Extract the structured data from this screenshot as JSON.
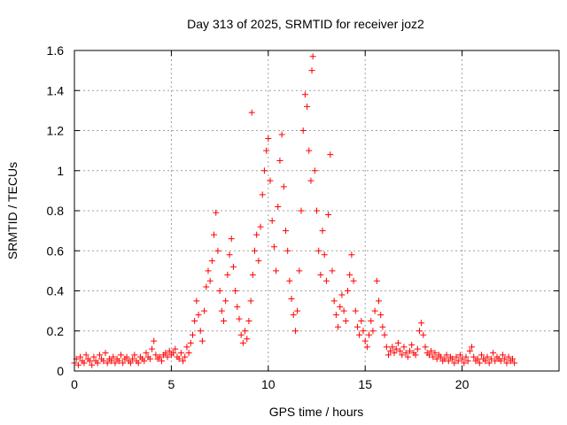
{
  "chart_data": {
    "type": "scatter",
    "title": "Day 313 of 2025, SRMTID for receiver joz2",
    "xlabel": "GPS time / hours",
    "ylabel": "SRMTID / TECUs",
    "xlim": [
      0,
      25
    ],
    "ylim": [
      0,
      1.6
    ],
    "x_ticks": [
      0,
      5,
      10,
      15,
      20
    ],
    "x_tick_labels": [
      "0",
      "5",
      "10",
      "15",
      "20"
    ],
    "y_ticks": [
      0,
      0.2,
      0.4,
      0.6,
      0.8,
      1.0,
      1.2,
      1.4,
      1.6
    ],
    "y_tick_labels": [
      "0",
      "0.2",
      "0.4",
      "0.6",
      "0.8",
      "1",
      "1.2",
      "1.4",
      "1.6"
    ],
    "grid": true,
    "marker": "+",
    "series": [
      {
        "name": "SRMTID",
        "color": "#ff0000",
        "points": [
          [
            0.0,
            0.04
          ],
          [
            0.1,
            0.06
          ],
          [
            0.2,
            0.03
          ],
          [
            0.3,
            0.07
          ],
          [
            0.4,
            0.05
          ],
          [
            0.5,
            0.04
          ],
          [
            0.6,
            0.08
          ],
          [
            0.7,
            0.06
          ],
          [
            0.8,
            0.05
          ],
          [
            0.9,
            0.03
          ],
          [
            1.0,
            0.07
          ],
          [
            1.1,
            0.05
          ],
          [
            1.2,
            0.04
          ],
          [
            1.3,
            0.08
          ],
          [
            1.4,
            0.06
          ],
          [
            1.5,
            0.05
          ],
          [
            1.6,
            0.09
          ],
          [
            1.7,
            0.04
          ],
          [
            1.8,
            0.06
          ],
          [
            1.9,
            0.05
          ],
          [
            2.0,
            0.07
          ],
          [
            2.1,
            0.04
          ],
          [
            2.2,
            0.06
          ],
          [
            2.3,
            0.05
          ],
          [
            2.4,
            0.08
          ],
          [
            2.5,
            0.04
          ],
          [
            2.6,
            0.06
          ],
          [
            2.7,
            0.07
          ],
          [
            2.8,
            0.05
          ],
          [
            2.9,
            0.04
          ],
          [
            3.0,
            0.06
          ],
          [
            3.1,
            0.08
          ],
          [
            3.2,
            0.05
          ],
          [
            3.3,
            0.04
          ],
          [
            3.4,
            0.07
          ],
          [
            3.5,
            0.06
          ],
          [
            3.6,
            0.05
          ],
          [
            3.7,
            0.09
          ],
          [
            3.8,
            0.07
          ],
          [
            3.9,
            0.06
          ],
          [
            4.0,
            0.11
          ],
          [
            4.1,
            0.15
          ],
          [
            4.2,
            0.08
          ],
          [
            4.3,
            0.06
          ],
          [
            4.4,
            0.07
          ],
          [
            4.5,
            0.05
          ],
          [
            4.6,
            0.08
          ],
          [
            4.7,
            0.09
          ],
          [
            4.8,
            0.07
          ],
          [
            4.9,
            0.1
          ],
          [
            5.0,
            0.08
          ],
          [
            5.1,
            0.09
          ],
          [
            5.2,
            0.11
          ],
          [
            5.3,
            0.07
          ],
          [
            5.4,
            0.06
          ],
          [
            5.5,
            0.09
          ],
          [
            5.6,
            0.05
          ],
          [
            5.7,
            0.07
          ],
          [
            5.8,
            0.12
          ],
          [
            5.9,
            0.09
          ],
          [
            6.0,
            0.14
          ],
          [
            6.1,
            0.18
          ],
          [
            6.2,
            0.25
          ],
          [
            6.3,
            0.35
          ],
          [
            6.4,
            0.28
          ],
          [
            6.5,
            0.2
          ],
          [
            6.6,
            0.15
          ],
          [
            6.7,
            0.3
          ],
          [
            6.8,
            0.42
          ],
          [
            6.9,
            0.5
          ],
          [
            7.0,
            0.45
          ],
          [
            7.1,
            0.55
          ],
          [
            7.2,
            0.68
          ],
          [
            7.3,
            0.79
          ],
          [
            7.4,
            0.6
          ],
          [
            7.5,
            0.4
          ],
          [
            7.6,
            0.3
          ],
          [
            7.7,
            0.25
          ],
          [
            7.8,
            0.35
          ],
          [
            7.9,
            0.48
          ],
          [
            8.0,
            0.58
          ],
          [
            8.1,
            0.66
          ],
          [
            8.2,
            0.52
          ],
          [
            8.3,
            0.4
          ],
          [
            8.4,
            0.32
          ],
          [
            8.5,
            0.26
          ],
          [
            8.6,
            0.18
          ],
          [
            8.7,
            0.14
          ],
          [
            8.8,
            0.2
          ],
          [
            8.9,
            0.16
          ],
          [
            9.0,
            0.25
          ],
          [
            9.1,
            0.35
          ],
          [
            9.15,
            1.29
          ],
          [
            9.2,
            0.48
          ],
          [
            9.3,
            0.6
          ],
          [
            9.4,
            0.68
          ],
          [
            9.5,
            0.55
          ],
          [
            9.6,
            0.72
          ],
          [
            9.7,
            0.88
          ],
          [
            9.8,
            1.0
          ],
          [
            9.9,
            1.1
          ],
          [
            10.0,
            1.16
          ],
          [
            10.1,
            0.95
          ],
          [
            10.2,
            0.75
          ],
          [
            10.3,
            0.62
          ],
          [
            10.4,
            0.5
          ],
          [
            10.5,
            0.82
          ],
          [
            10.6,
            1.05
          ],
          [
            10.7,
            1.18
          ],
          [
            10.8,
            0.92
          ],
          [
            10.9,
            0.7
          ],
          [
            11.0,
            0.6
          ],
          [
            11.1,
            0.45
          ],
          [
            11.2,
            0.36
          ],
          [
            11.3,
            0.28
          ],
          [
            11.4,
            0.2
          ],
          [
            11.5,
            0.3
          ],
          [
            11.6,
            0.5
          ],
          [
            11.7,
            0.8
          ],
          [
            11.8,
            1.2
          ],
          [
            11.9,
            1.38
          ],
          [
            12.0,
            1.32
          ],
          [
            12.1,
            1.1
          ],
          [
            12.2,
            0.95
          ],
          [
            12.25,
            1.5
          ],
          [
            12.3,
            1.57
          ],
          [
            12.4,
            1.0
          ],
          [
            12.5,
            0.8
          ],
          [
            12.6,
            0.6
          ],
          [
            12.7,
            0.48
          ],
          [
            12.8,
            0.7
          ],
          [
            12.9,
            0.58
          ],
          [
            13.0,
            0.45
          ],
          [
            13.1,
            0.78
          ],
          [
            13.2,
            1.08
          ],
          [
            13.3,
            0.5
          ],
          [
            13.4,
            0.35
          ],
          [
            13.5,
            0.28
          ],
          [
            13.6,
            0.22
          ],
          [
            13.7,
            0.32
          ],
          [
            13.8,
            0.38
          ],
          [
            13.9,
            0.3
          ],
          [
            14.0,
            0.25
          ],
          [
            14.1,
            0.4
          ],
          [
            14.2,
            0.48
          ],
          [
            14.3,
            0.58
          ],
          [
            14.4,
            0.45
          ],
          [
            14.5,
            0.3
          ],
          [
            14.6,
            0.22
          ],
          [
            14.7,
            0.18
          ],
          [
            14.8,
            0.25
          ],
          [
            14.9,
            0.2
          ],
          [
            15.0,
            0.15
          ],
          [
            15.1,
            0.12
          ],
          [
            15.2,
            0.18
          ],
          [
            15.3,
            0.25
          ],
          [
            15.4,
            0.2
          ],
          [
            15.5,
            0.3
          ],
          [
            15.6,
            0.45
          ],
          [
            15.7,
            0.35
          ],
          [
            15.8,
            0.28
          ],
          [
            15.9,
            0.22
          ],
          [
            16.0,
            0.18
          ],
          [
            16.1,
            0.12
          ],
          [
            16.2,
            0.08
          ],
          [
            16.3,
            0.1
          ],
          [
            16.4,
            0.12
          ],
          [
            16.5,
            0.09
          ],
          [
            16.6,
            0.11
          ],
          [
            16.7,
            0.14
          ],
          [
            16.8,
            0.1
          ],
          [
            16.9,
            0.08
          ],
          [
            17.0,
            0.12
          ],
          [
            17.1,
            0.09
          ],
          [
            17.2,
            0.07
          ],
          [
            17.3,
            0.1
          ],
          [
            17.4,
            0.13
          ],
          [
            17.5,
            0.09
          ],
          [
            17.6,
            0.08
          ],
          [
            17.7,
            0.11
          ],
          [
            17.8,
            0.2
          ],
          [
            17.9,
            0.24
          ],
          [
            18.0,
            0.18
          ],
          [
            18.1,
            0.12
          ],
          [
            18.2,
            0.09
          ],
          [
            18.3,
            0.08
          ],
          [
            18.4,
            0.1
          ],
          [
            18.5,
            0.07
          ],
          [
            18.6,
            0.09
          ],
          [
            18.7,
            0.06
          ],
          [
            18.8,
            0.08
          ],
          [
            18.9,
            0.07
          ],
          [
            19.0,
            0.05
          ],
          [
            19.1,
            0.06
          ],
          [
            19.2,
            0.08
          ],
          [
            19.3,
            0.05
          ],
          [
            19.4,
            0.07
          ],
          [
            19.5,
            0.06
          ],
          [
            19.6,
            0.04
          ],
          [
            19.7,
            0.07
          ],
          [
            19.8,
            0.05
          ],
          [
            19.9,
            0.08
          ],
          [
            20.0,
            0.06
          ],
          [
            20.1,
            0.04
          ],
          [
            20.2,
            0.07
          ],
          [
            20.3,
            0.05
          ],
          [
            20.4,
            0.1
          ],
          [
            20.5,
            0.12
          ],
          [
            20.6,
            0.07
          ],
          [
            20.7,
            0.05
          ],
          [
            20.8,
            0.06
          ],
          [
            20.9,
            0.04
          ],
          [
            21.0,
            0.08
          ],
          [
            21.1,
            0.06
          ],
          [
            21.2,
            0.05
          ],
          [
            21.3,
            0.07
          ],
          [
            21.4,
            0.04
          ],
          [
            21.5,
            0.06
          ],
          [
            21.6,
            0.09
          ],
          [
            21.7,
            0.05
          ],
          [
            21.8,
            0.07
          ],
          [
            21.9,
            0.06
          ],
          [
            22.0,
            0.05
          ],
          [
            22.1,
            0.08
          ],
          [
            22.2,
            0.06
          ],
          [
            22.3,
            0.04
          ],
          [
            22.4,
            0.07
          ],
          [
            22.5,
            0.05
          ],
          [
            22.6,
            0.06
          ],
          [
            22.7,
            0.04
          ]
        ]
      }
    ]
  }
}
